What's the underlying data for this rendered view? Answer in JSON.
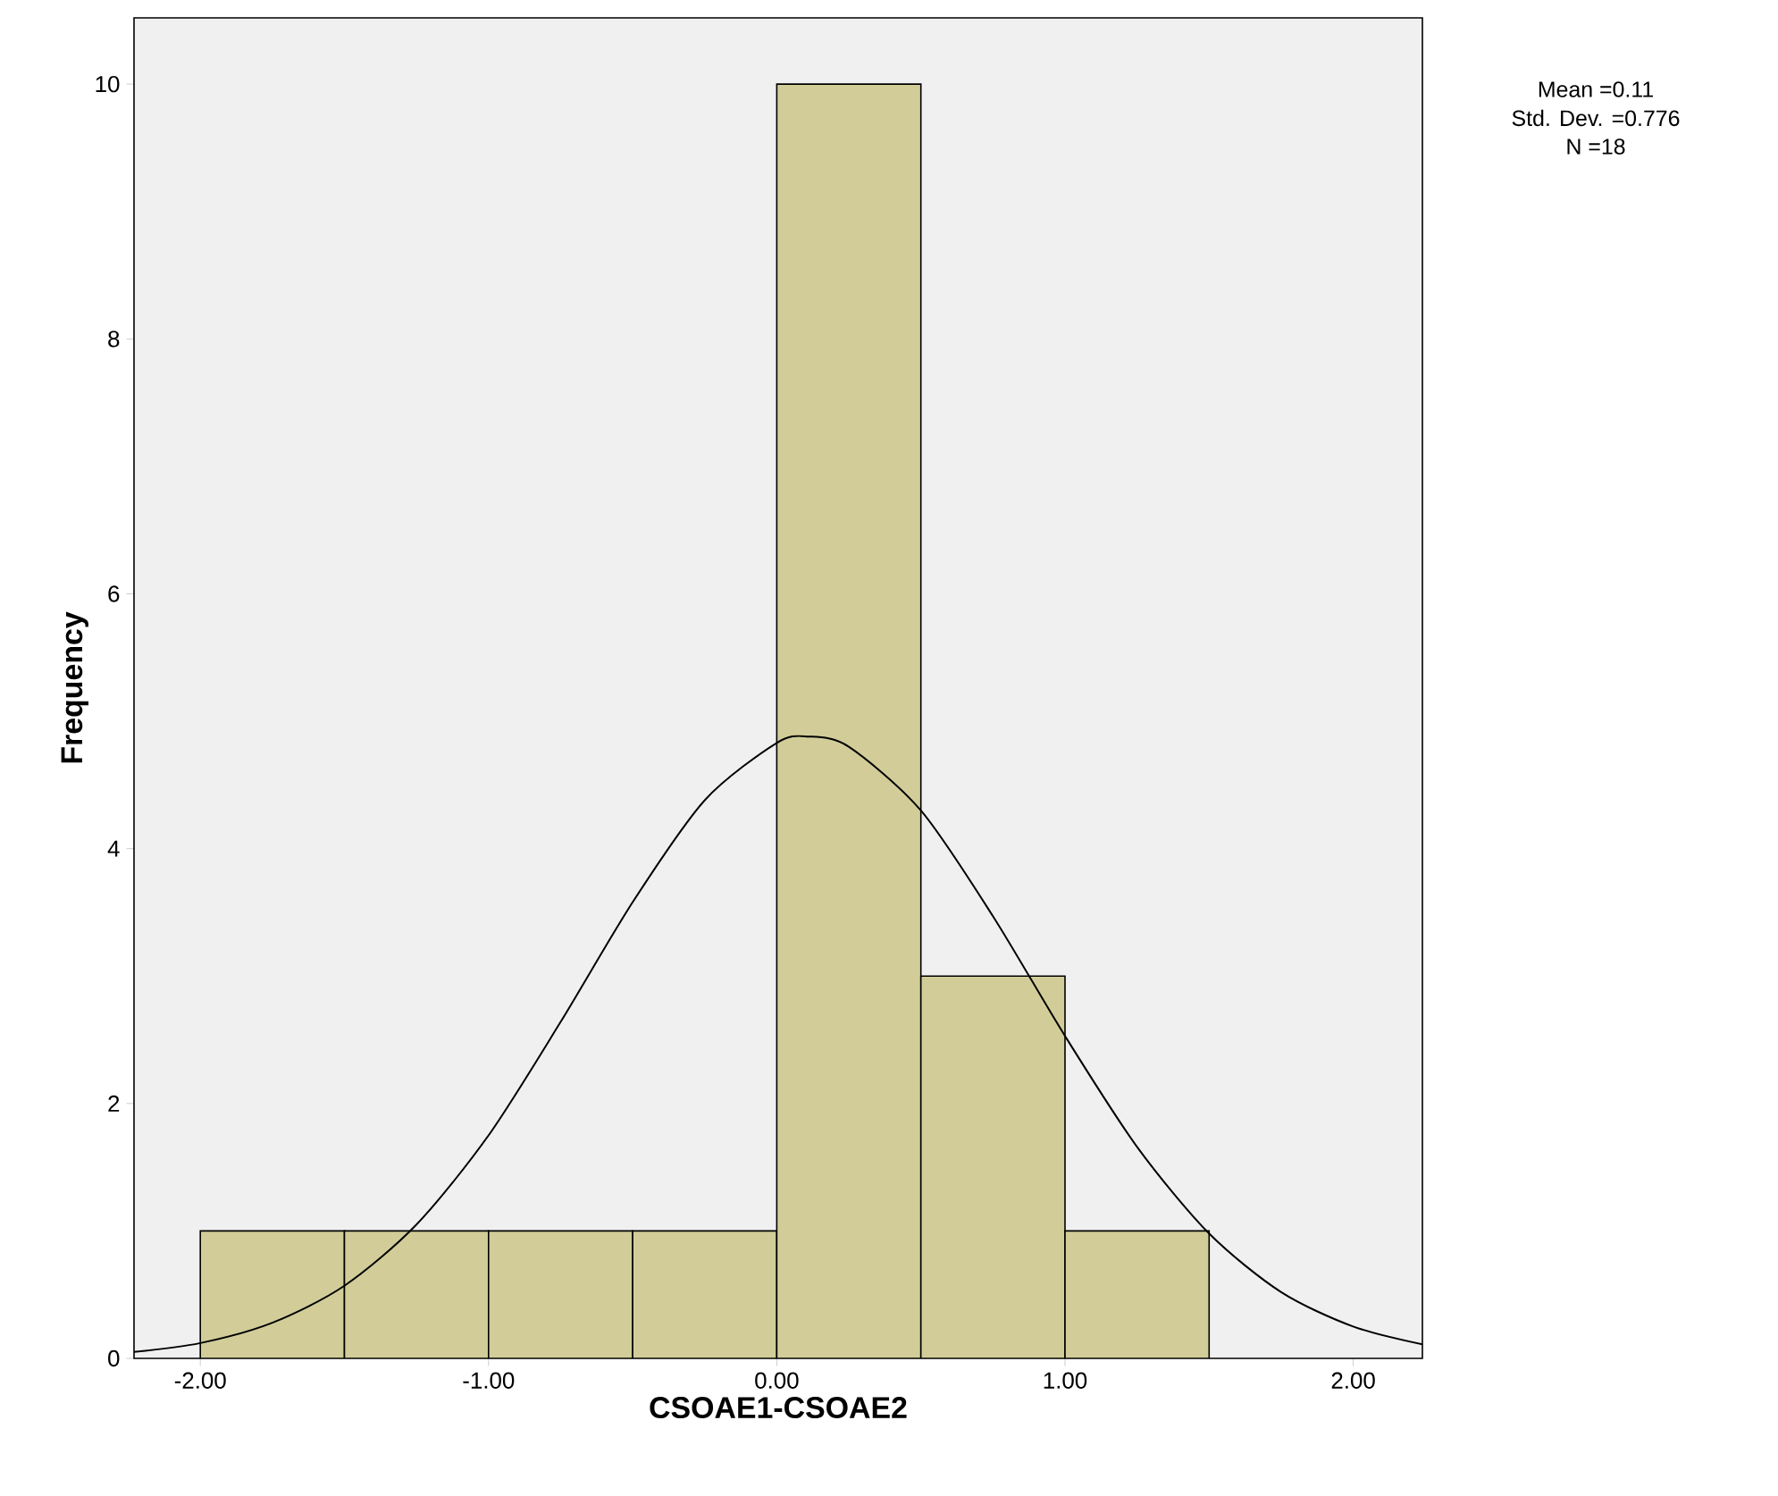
{
  "chart_data": {
    "type": "histogram",
    "xlabel": "CSOAE1-CSOAE2",
    "ylabel": "Frequency",
    "xlim": [
      -2.23,
      2.24
    ],
    "ylim": [
      0,
      10.52
    ],
    "xticks": [
      {
        "value": -2,
        "label": "-2.00"
      },
      {
        "value": -1,
        "label": "-1.00"
      },
      {
        "value": 0,
        "label": "0.00"
      },
      {
        "value": 1,
        "label": "1.00"
      },
      {
        "value": 2,
        "label": "2.00"
      }
    ],
    "yticks": [
      0,
      2,
      4,
      6,
      8,
      10
    ],
    "series": [
      {
        "color": "#d2cd98",
        "bins": [
          -2.0,
          -1.5,
          -1.0,
          -0.5,
          0.0,
          0.5,
          1.0,
          1.5
        ],
        "values": [
          1,
          1,
          1,
          1,
          10,
          3,
          1
        ]
      },
      {
        "type": "line",
        "color": "#000000",
        "x": [
          -2.23,
          -2.0,
          -1.75,
          -1.5,
          -1.25,
          -1.0,
          -0.75,
          -0.5,
          -0.25,
          0.0,
          0.11,
          0.25,
          0.5,
          0.75,
          1.0,
          1.25,
          1.5,
          1.75,
          2.0,
          2.24
        ],
        "values": [
          0.05,
          0.12,
          0.28,
          0.57,
          1.05,
          1.75,
          2.64,
          3.58,
          4.38,
          4.83,
          4.88,
          4.8,
          4.3,
          3.47,
          2.53,
          1.66,
          0.98,
          0.52,
          0.25,
          0.11
        ]
      }
    ],
    "annotations": [
      "Mean =0.11",
      "Std. Dev. =0.776",
      "N =18"
    ]
  }
}
